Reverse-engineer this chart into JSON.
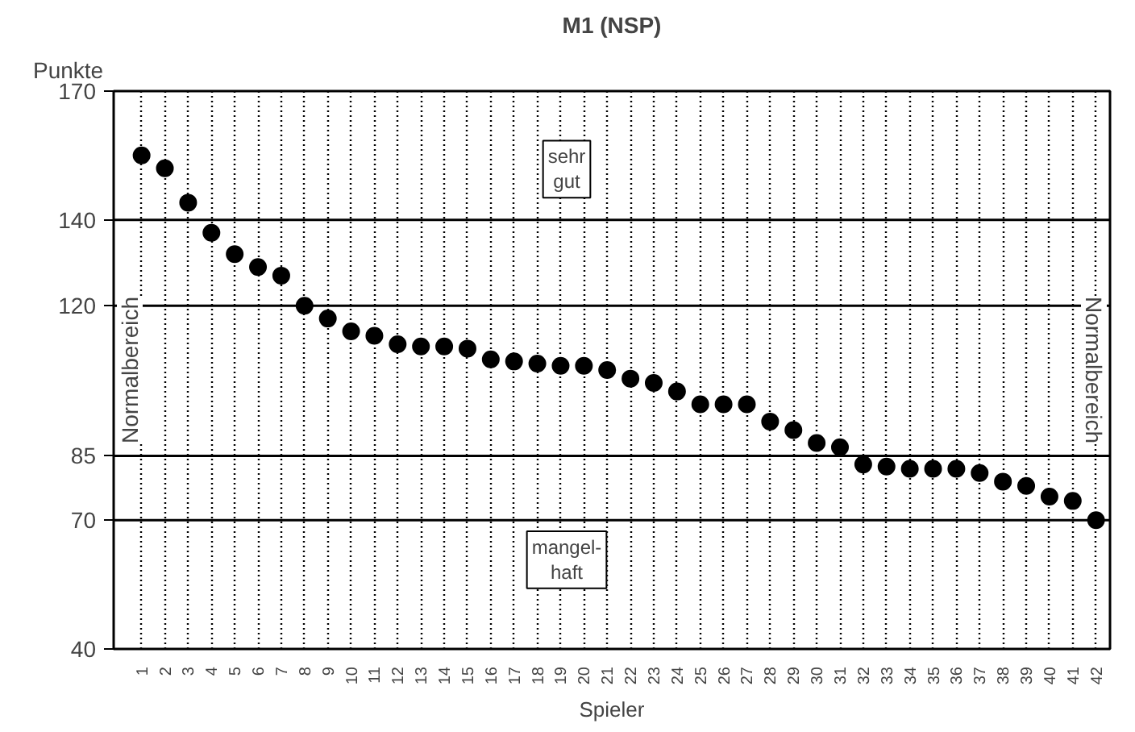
{
  "chart_data": {
    "type": "scatter",
    "title": "M1 (NSP)",
    "ylabel": "Punkte",
    "xlabel": "Spieler",
    "categories": [
      "1",
      "2",
      "3",
      "4",
      "5",
      "6",
      "7",
      "8",
      "9",
      "10",
      "11",
      "12",
      "13",
      "14",
      "15",
      "16",
      "17",
      "18",
      "19",
      "20",
      "21",
      "22",
      "23",
      "24",
      "25",
      "26",
      "27",
      "28",
      "29",
      "30",
      "31",
      "32",
      "33",
      "34",
      "35",
      "36",
      "37",
      "38",
      "39",
      "40",
      "41",
      "42"
    ],
    "series": [
      {
        "color": "#000000",
        "values": [
          155,
          152,
          144,
          137,
          132,
          129,
          127,
          120,
          117,
          114,
          113,
          111,
          110.5,
          110.5,
          110,
          107.5,
          107,
          106.5,
          106,
          106,
          105,
          103,
          102,
          100,
          97,
          97,
          97,
          93,
          91,
          88,
          87,
          83,
          82.5,
          82,
          82,
          82,
          81,
          79,
          78,
          75.5,
          74.5,
          70
        ]
      }
    ],
    "ylim": [
      40,
      170
    ],
    "yticks": [
      40,
      70,
      85,
      120,
      140,
      170
    ],
    "ref_lines": [
      {
        "axis": "y",
        "value": 140
      },
      {
        "axis": "y",
        "value": 120
      },
      {
        "axis": "y",
        "value": 85
      },
      {
        "axis": "y",
        "value": 70
      }
    ],
    "annotations": [
      "sehr\ngut",
      "mangel-\nhaft",
      "Normalbereich",
      "Normalbereich"
    ],
    "grid": "x",
    "marker": "circle"
  }
}
